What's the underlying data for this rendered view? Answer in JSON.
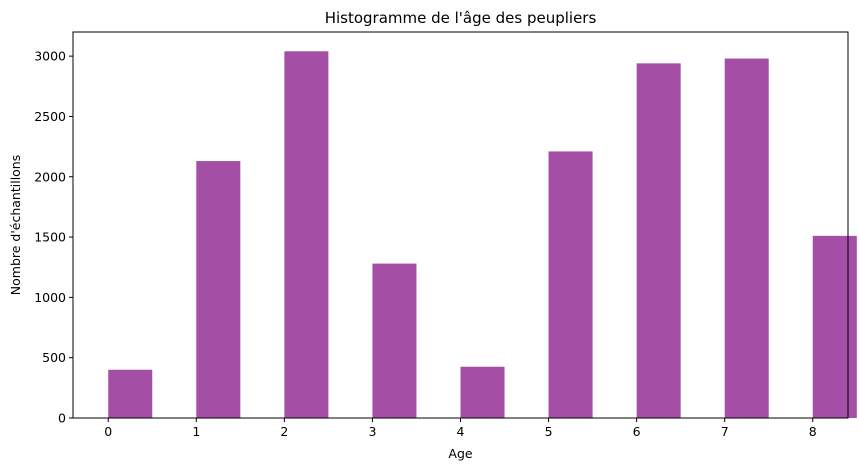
{
  "chart_data": {
    "type": "bar",
    "title": "Histogramme de l'âge des peupliers",
    "xlabel": "Age",
    "ylabel": "Nombre d'échantillons",
    "xlim": [
      -0.4,
      8.4
    ],
    "ylim": [
      0,
      3200
    ],
    "x_ticks": [
      0,
      1,
      2,
      3,
      4,
      5,
      6,
      7,
      8
    ],
    "y_ticks": [
      0,
      500,
      1000,
      1500,
      2000,
      2500,
      3000
    ],
    "bar_color": "#A44EA6",
    "grid": false,
    "bars": [
      {
        "x_start": 0.0,
        "x_end": 0.5,
        "value": 400
      },
      {
        "x_start": 1.0,
        "x_end": 1.5,
        "value": 2130
      },
      {
        "x_start": 2.0,
        "x_end": 2.5,
        "value": 3040
      },
      {
        "x_start": 3.0,
        "x_end": 3.5,
        "value": 1280
      },
      {
        "x_start": 4.0,
        "x_end": 4.5,
        "value": 425
      },
      {
        "x_start": 5.0,
        "x_end": 5.5,
        "value": 2210
      },
      {
        "x_start": 6.0,
        "x_end": 6.5,
        "value": 2940
      },
      {
        "x_start": 7.0,
        "x_end": 7.5,
        "value": 2980
      },
      {
        "x_start": 8.0,
        "x_end": 8.5,
        "value": 1510
      }
    ]
  }
}
